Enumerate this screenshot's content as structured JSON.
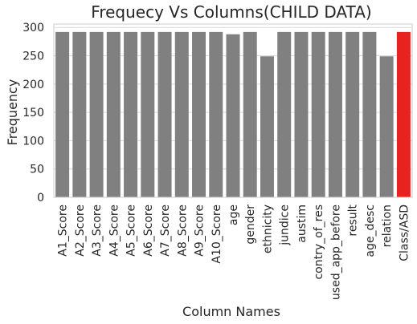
{
  "chart_data": {
    "type": "bar",
    "title": "Frequecy Vs Columns(CHILD DATA)",
    "xlabel": "Column Names",
    "ylabel": "Frequency",
    "ylim": [
      0,
      306
    ],
    "yticks": [
      0,
      50,
      100,
      150,
      200,
      250,
      300
    ],
    "grid": true,
    "categories": [
      "A1_Score",
      "A2_Score",
      "A3_Score",
      "A4_Score",
      "A5_Score",
      "A6_Score",
      "A7_Score",
      "A8_Score",
      "A9_Score",
      "A10_Score",
      "age",
      "gender",
      "ethnicity",
      "jundice",
      "austim",
      "contry_of_res",
      "used_app_before",
      "result",
      "age_desc",
      "relation",
      "Class/ASD"
    ],
    "values": [
      292,
      292,
      292,
      292,
      292,
      292,
      292,
      292,
      292,
      292,
      288,
      292,
      249,
      292,
      292,
      292,
      292,
      292,
      292,
      249,
      292
    ],
    "bar_color": "#808080",
    "highlight_color": "#e8231f",
    "highlight_category": "Class/ASD",
    "background_color": "#ffffff",
    "grid_color": "#d9d9d9"
  }
}
